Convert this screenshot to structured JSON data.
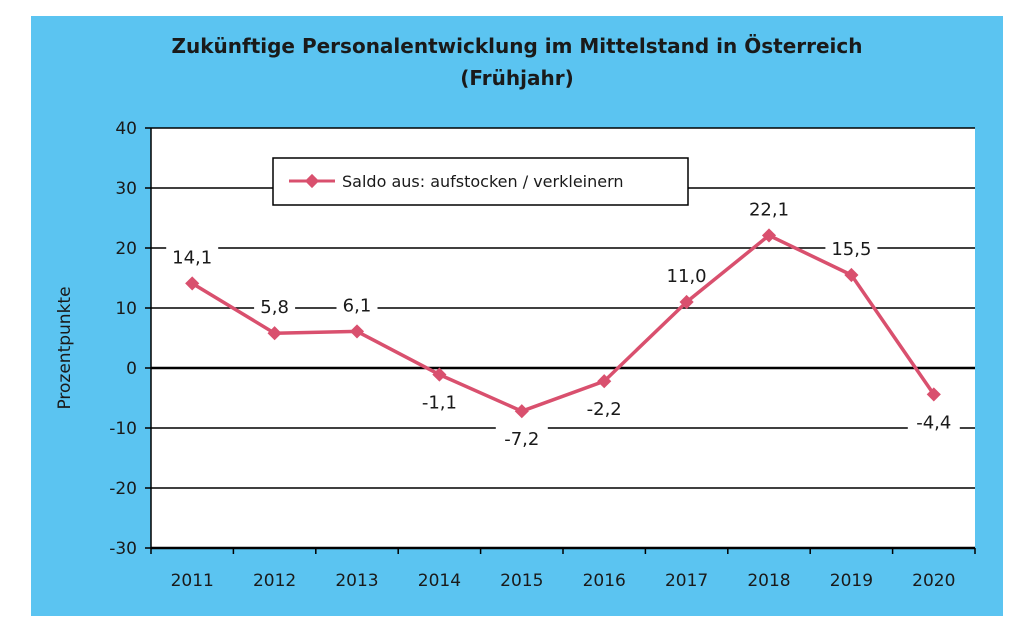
{
  "chart_data": {
    "type": "line",
    "title": "Zukünftige Personalentwicklung im Mittelstand in Österreich",
    "subtitle": "(Frühjahr)",
    "xlabel": "",
    "ylabel": "Prozentpunkte",
    "categories": [
      "2011",
      "2012",
      "2013",
      "2014",
      "2015",
      "2016",
      "2017",
      "2018",
      "2019",
      "2020"
    ],
    "series": [
      {
        "name": "Saldo aus: aufstocken / verkleinern",
        "values": [
          14.1,
          5.8,
          6.1,
          -1.1,
          -7.2,
          -2.2,
          11.0,
          22.1,
          15.5,
          -4.4
        ],
        "value_labels": [
          "14,1",
          "5,8",
          "6,1",
          "-1,1",
          "-7,2",
          "-2,2",
          "11,0",
          "22,1",
          "15,5",
          "-4,4"
        ],
        "color": "#d9506e"
      }
    ],
    "ylim": [
      -30,
      40
    ],
    "yticks": [
      40,
      30,
      20,
      10,
      0,
      -10,
      -20,
      -30
    ],
    "grid": true,
    "legend_position": "top-left",
    "colors": {
      "frame_background": "#5bc4f1",
      "plot_background": "#ffffff",
      "gridline": "#000000"
    }
  }
}
